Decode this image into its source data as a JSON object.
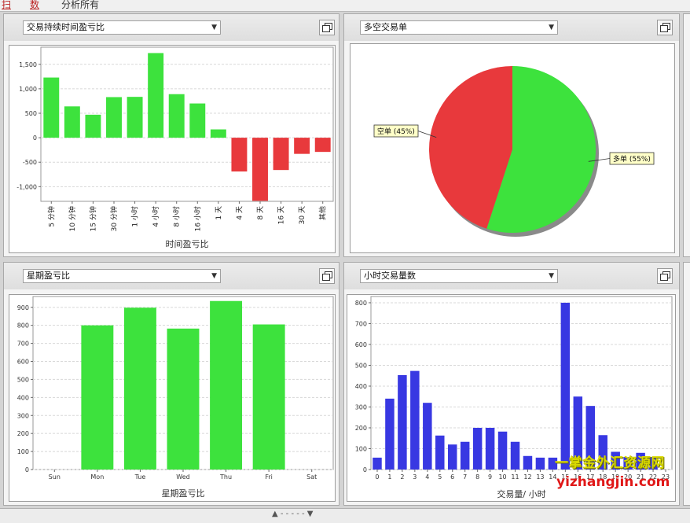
{
  "topbar": {
    "tab1": "扫",
    "tab2": "数",
    "tab3": "分析所有"
  },
  "panels": {
    "duration": {
      "select": "交易持续时间盈亏比"
    },
    "longshort": {
      "select": "多空交易单"
    },
    "weekday": {
      "select": "星期盈亏比"
    },
    "hourly": {
      "select": "小时交易量数"
    }
  },
  "colors": {
    "profit": "#3de23d",
    "loss": "#e8393c",
    "volume": "#3838e2",
    "long": "#3de23d",
    "short": "#e8393c"
  },
  "chart_data": [
    {
      "type": "bar",
      "xlabel": "时间盈亏比",
      "ylabel": "",
      "categories": [
        "5 分钟",
        "10 分钟",
        "15 分钟",
        "30 分钟",
        "1 小时",
        "4 小时",
        "8 小时",
        "16 小时",
        "1 天",
        "4 天",
        "8 天",
        "16 天",
        "30 天",
        "其他"
      ],
      "values": [
        1230,
        640,
        470,
        830,
        835,
        1730,
        890,
        700,
        170,
        -690,
        -1290,
        -660,
        -330,
        -290
      ],
      "ylim": [
        -1300,
        1850
      ],
      "yticks": [
        -1000,
        -500,
        0,
        500,
        1000,
        1500
      ],
      "ytick_labels": [
        "-1,000",
        "-500",
        "0",
        "500",
        "1,000",
        "1,500"
      ],
      "grid": true
    },
    {
      "type": "pie",
      "slices": [
        {
          "label": "多单",
          "pct_label": "55%",
          "value": 55
        },
        {
          "label": "空单",
          "pct_label": "45%",
          "value": 45
        }
      ]
    },
    {
      "type": "bar",
      "xlabel": "星期盈亏比",
      "ylabel": "",
      "categories": [
        "Sun",
        "Mon",
        "Tue",
        "Wed",
        "Thu",
        "Fri",
        "Sat"
      ],
      "values": [
        0,
        800,
        898,
        782,
        935,
        805,
        0
      ],
      "ylim": [
        0,
        960
      ],
      "yticks": [
        0,
        100,
        200,
        300,
        400,
        500,
        600,
        700,
        800,
        900
      ],
      "grid": true
    },
    {
      "type": "bar",
      "xlabel": "交易量/ 小时",
      "ylabel": "",
      "categories": [
        "0",
        "1",
        "2",
        "3",
        "4",
        "5",
        "6",
        "7",
        "8",
        "9",
        "10",
        "11",
        "12",
        "13",
        "14",
        "15",
        "16",
        "17",
        "18",
        "19",
        "20",
        "21",
        "22",
        "23"
      ],
      "values": [
        57,
        340,
        453,
        473,
        320,
        163,
        120,
        133,
        200,
        200,
        182,
        133,
        65,
        57,
        57,
        800,
        350,
        305,
        165,
        85,
        60,
        80,
        60,
        0
      ],
      "ylim": [
        0,
        830
      ],
      "yticks": [
        0,
        100,
        200,
        300,
        400,
        500,
        600,
        700,
        800
      ],
      "grid": true
    }
  ],
  "watermark": {
    "line1": "一掌金外汇资源网",
    "line2": "yizhangjin.com"
  },
  "bottombar": {
    "text": "▲ - - - - - ▼"
  }
}
